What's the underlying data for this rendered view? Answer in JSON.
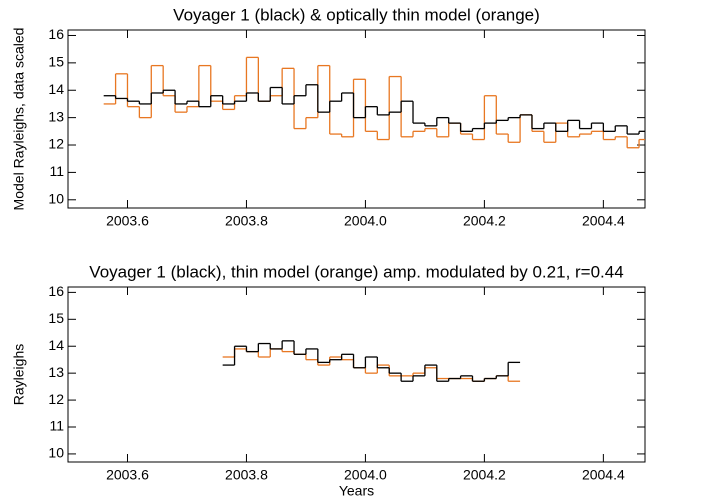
{
  "chart_data": [
    {
      "type": "step",
      "title": "Voyager 1 (black) & optically thin model (orange)",
      "ylabel": "Model Rayleighs, data scaled",
      "xlim": [
        2003.5,
        2004.47
      ],
      "ylim": [
        9.7,
        16.2
      ],
      "xticks": [
        2003.6,
        2003.8,
        {
          "value": 2004.0,
          "label": "2004.0"
        },
        2004.2,
        2004.4
      ],
      "yticks": [
        10,
        11,
        12,
        13,
        14,
        15,
        16
      ],
      "x": [
        2003.57,
        2003.59,
        2003.61,
        2003.63,
        2003.65,
        2003.67,
        2003.69,
        2003.71,
        2003.73,
        2003.75,
        2003.77,
        2003.79,
        2003.81,
        2003.83,
        2003.85,
        2003.87,
        2003.89,
        2003.91,
        2003.93,
        2003.95,
        2003.97,
        2003.99,
        2004.01,
        2004.03,
        2004.05,
        2004.07,
        2004.09,
        2004.11,
        2004.13,
        2004.15,
        2004.17,
        2004.19,
        2004.21,
        2004.23,
        2004.25,
        2004.27,
        2004.29,
        2004.31,
        2004.33,
        2004.35,
        2004.37,
        2004.39,
        2004.41,
        2004.43,
        2004.45,
        2004.47
      ],
      "series": [
        {
          "color": "#e87722",
          "values": [
            13.5,
            14.6,
            13.4,
            13.0,
            14.9,
            13.8,
            13.2,
            13.4,
            14.9,
            13.6,
            13.3,
            13.8,
            15.2,
            13.6,
            13.8,
            14.8,
            12.6,
            13.0,
            14.9,
            12.4,
            12.3,
            14.4,
            12.5,
            12.2,
            14.5,
            12.3,
            12.5,
            12.6,
            12.3,
            12.8,
            12.4,
            12.2,
            13.8,
            12.4,
            12.1,
            13.1,
            12.5,
            12.1,
            12.8,
            12.3,
            12.4,
            12.5,
            12.2,
            12.3,
            11.9,
            12.2
          ]
        },
        {
          "color": "#000000",
          "values": [
            13.8,
            13.7,
            13.6,
            13.5,
            13.9,
            14.0,
            13.5,
            13.6,
            13.4,
            13.8,
            13.5,
            13.6,
            13.9,
            13.6,
            14.1,
            13.5,
            13.8,
            14.2,
            13.2,
            13.6,
            13.9,
            13.0,
            13.4,
            13.1,
            13.2,
            13.6,
            12.8,
            12.7,
            13.0,
            12.8,
            12.5,
            12.6,
            12.8,
            12.9,
            13.0,
            13.1,
            12.6,
            12.8,
            12.5,
            12.9,
            12.6,
            12.8,
            12.5,
            12.7,
            12.4,
            12.5
          ]
        }
      ]
    },
    {
      "type": "step",
      "title": "Voyager 1 (black), thin model (orange) amp. modulated by 0.21, r=0.44",
      "ylabel": "Rayleighs",
      "xlabel": "Years",
      "xlim": [
        2003.5,
        2004.47
      ],
      "ylim": [
        9.7,
        16.2
      ],
      "xticks": [
        2003.6,
        2003.8,
        {
          "value": 2004.0,
          "label": "2004.0"
        },
        2004.2,
        2004.4
      ],
      "yticks": [
        10,
        11,
        12,
        13,
        14,
        15,
        16
      ],
      "x": [
        2003.77,
        2003.79,
        2003.81,
        2003.83,
        2003.85,
        2003.87,
        2003.89,
        2003.91,
        2003.93,
        2003.95,
        2003.97,
        2003.99,
        2004.01,
        2004.03,
        2004.05,
        2004.07,
        2004.09,
        2004.11,
        2004.13,
        2004.15,
        2004.17,
        2004.19,
        2004.21,
        2004.23,
        2004.25
      ],
      "series": [
        {
          "color": "#e87722",
          "values": [
            13.6,
            13.9,
            13.8,
            13.6,
            13.9,
            13.8,
            13.7,
            13.5,
            13.3,
            13.6,
            13.5,
            13.2,
            13.0,
            13.3,
            12.9,
            12.9,
            13.0,
            13.2,
            12.8,
            12.8,
            12.8,
            12.7,
            12.8,
            12.9,
            12.7
          ]
        },
        {
          "color": "#000000",
          "values": [
            13.3,
            14.0,
            13.8,
            14.1,
            13.9,
            14.2,
            13.7,
            13.9,
            13.4,
            13.5,
            13.7,
            13.2,
            13.6,
            13.2,
            13.0,
            12.7,
            12.9,
            13.3,
            12.7,
            12.8,
            12.9,
            12.7,
            12.8,
            12.9,
            13.4
          ]
        }
      ]
    }
  ]
}
